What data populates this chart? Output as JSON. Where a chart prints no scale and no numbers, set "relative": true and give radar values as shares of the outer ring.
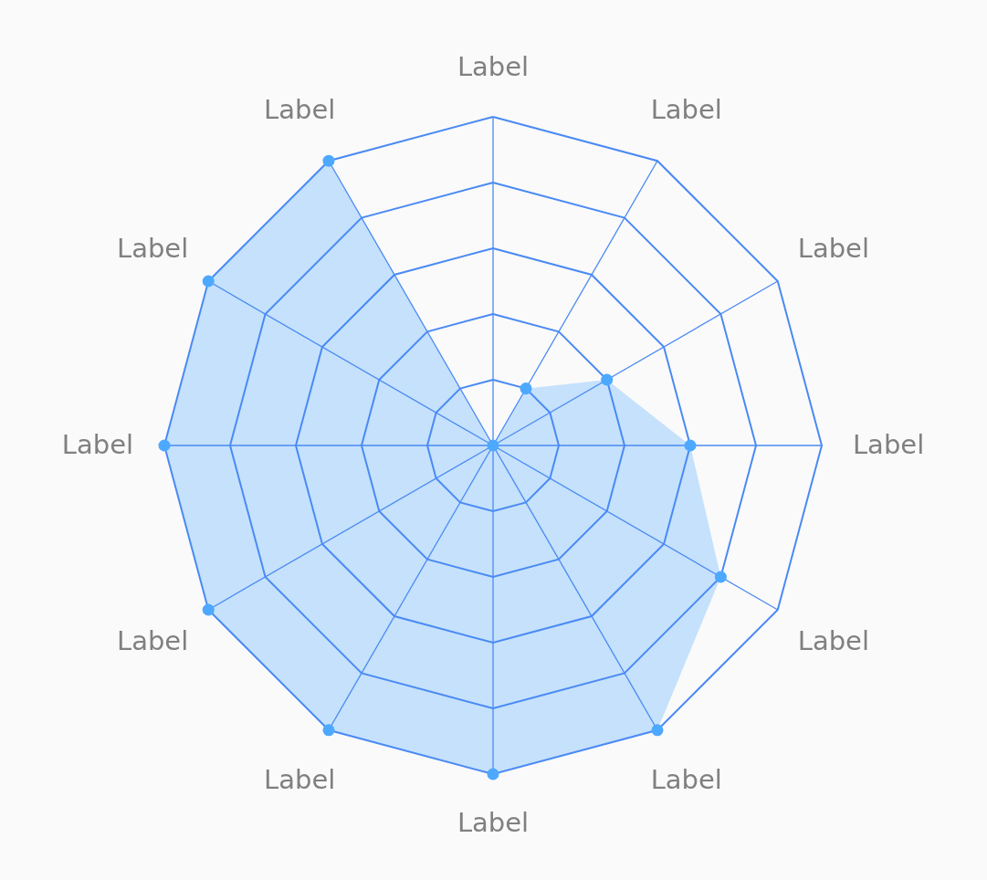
{
  "chart_data": {
    "type": "radar",
    "relative": true,
    "grid": true,
    "marker": "circle",
    "categories": [
      "Label",
      "Label",
      "Label",
      "Label",
      "Label",
      "Label",
      "Label",
      "Label",
      "Label",
      "Label",
      "Label",
      "Label"
    ],
    "series": [
      {
        "color": "#4da9ff",
        "values": [
          0,
          0.2,
          0.4,
          0.6,
          0.8,
          1,
          1,
          1,
          1,
          1,
          1,
          1
        ]
      }
    ]
  }
}
